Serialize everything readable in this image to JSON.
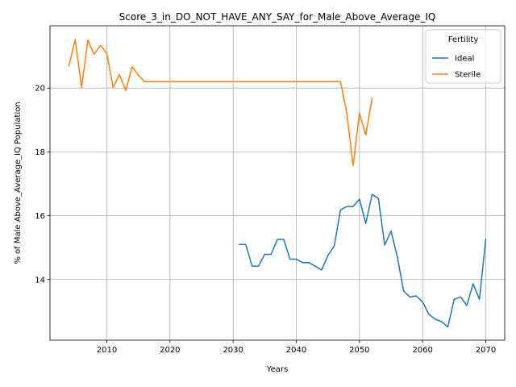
{
  "chart_data": {
    "type": "line",
    "title": "Score_3_in_DO_NOT_HAVE_ANY_SAY_for_Male_Above_Average_IQ",
    "xlabel": "Years",
    "ylabel": "% of Male Above_Average_IQ Population",
    "xlim": [
      2001,
      2073
    ],
    "ylim": [
      12.1,
      21.95
    ],
    "xticks": [
      2010,
      2020,
      2030,
      2040,
      2050,
      2060,
      2070
    ],
    "yticks": [
      14,
      16,
      18,
      20
    ],
    "grid": true,
    "legend": {
      "title": "Fertility",
      "placement": "top-right"
    },
    "series": [
      {
        "name": "Ideal",
        "color": "#1f77b4",
        "x": [
          2031,
          2032,
          2033,
          2034,
          2035,
          2036,
          2037,
          2038,
          2039,
          2040,
          2041,
          2042,
          2043,
          2044,
          2045,
          2046,
          2047,
          2048,
          2049,
          2050,
          2051,
          2052,
          2053,
          2054,
          2055,
          2056,
          2057,
          2058,
          2059,
          2060,
          2061,
          2062,
          2063,
          2064,
          2065,
          2066,
          2067,
          2068,
          2069,
          2070
        ],
        "y": [
          15.1,
          15.1,
          14.42,
          14.42,
          14.79,
          14.79,
          15.26,
          15.26,
          14.64,
          14.64,
          14.53,
          14.53,
          14.42,
          14.3,
          14.75,
          15.05,
          16.18,
          16.29,
          16.29,
          16.52,
          15.76,
          16.67,
          16.54,
          15.08,
          15.52,
          14.71,
          13.64,
          13.45,
          13.49,
          13.3,
          12.91,
          12.76,
          12.68,
          12.52,
          13.38,
          13.46,
          13.19,
          13.87,
          13.38,
          15.27
        ]
      },
      {
        "name": "Sterile",
        "color": "#ff7f0e",
        "x": [
          2004,
          2005,
          2006,
          2007,
          2008,
          2009,
          2010,
          2011,
          2012,
          2013,
          2014,
          2015,
          2016,
          2017,
          2018,
          2019,
          2020,
          2025,
          2030,
          2035,
          2040,
          2045,
          2047,
          2048,
          2049,
          2050,
          2051,
          2052
        ],
        "y": [
          20.7,
          21.52,
          20.02,
          21.5,
          21.06,
          21.34,
          21.08,
          20.02,
          20.42,
          19.92,
          20.67,
          20.4,
          20.2,
          20.2,
          20.2,
          20.2,
          20.2,
          20.2,
          20.2,
          20.2,
          20.2,
          20.2,
          20.2,
          19.21,
          17.57,
          19.21,
          18.53,
          19.68
        ]
      }
    ]
  }
}
